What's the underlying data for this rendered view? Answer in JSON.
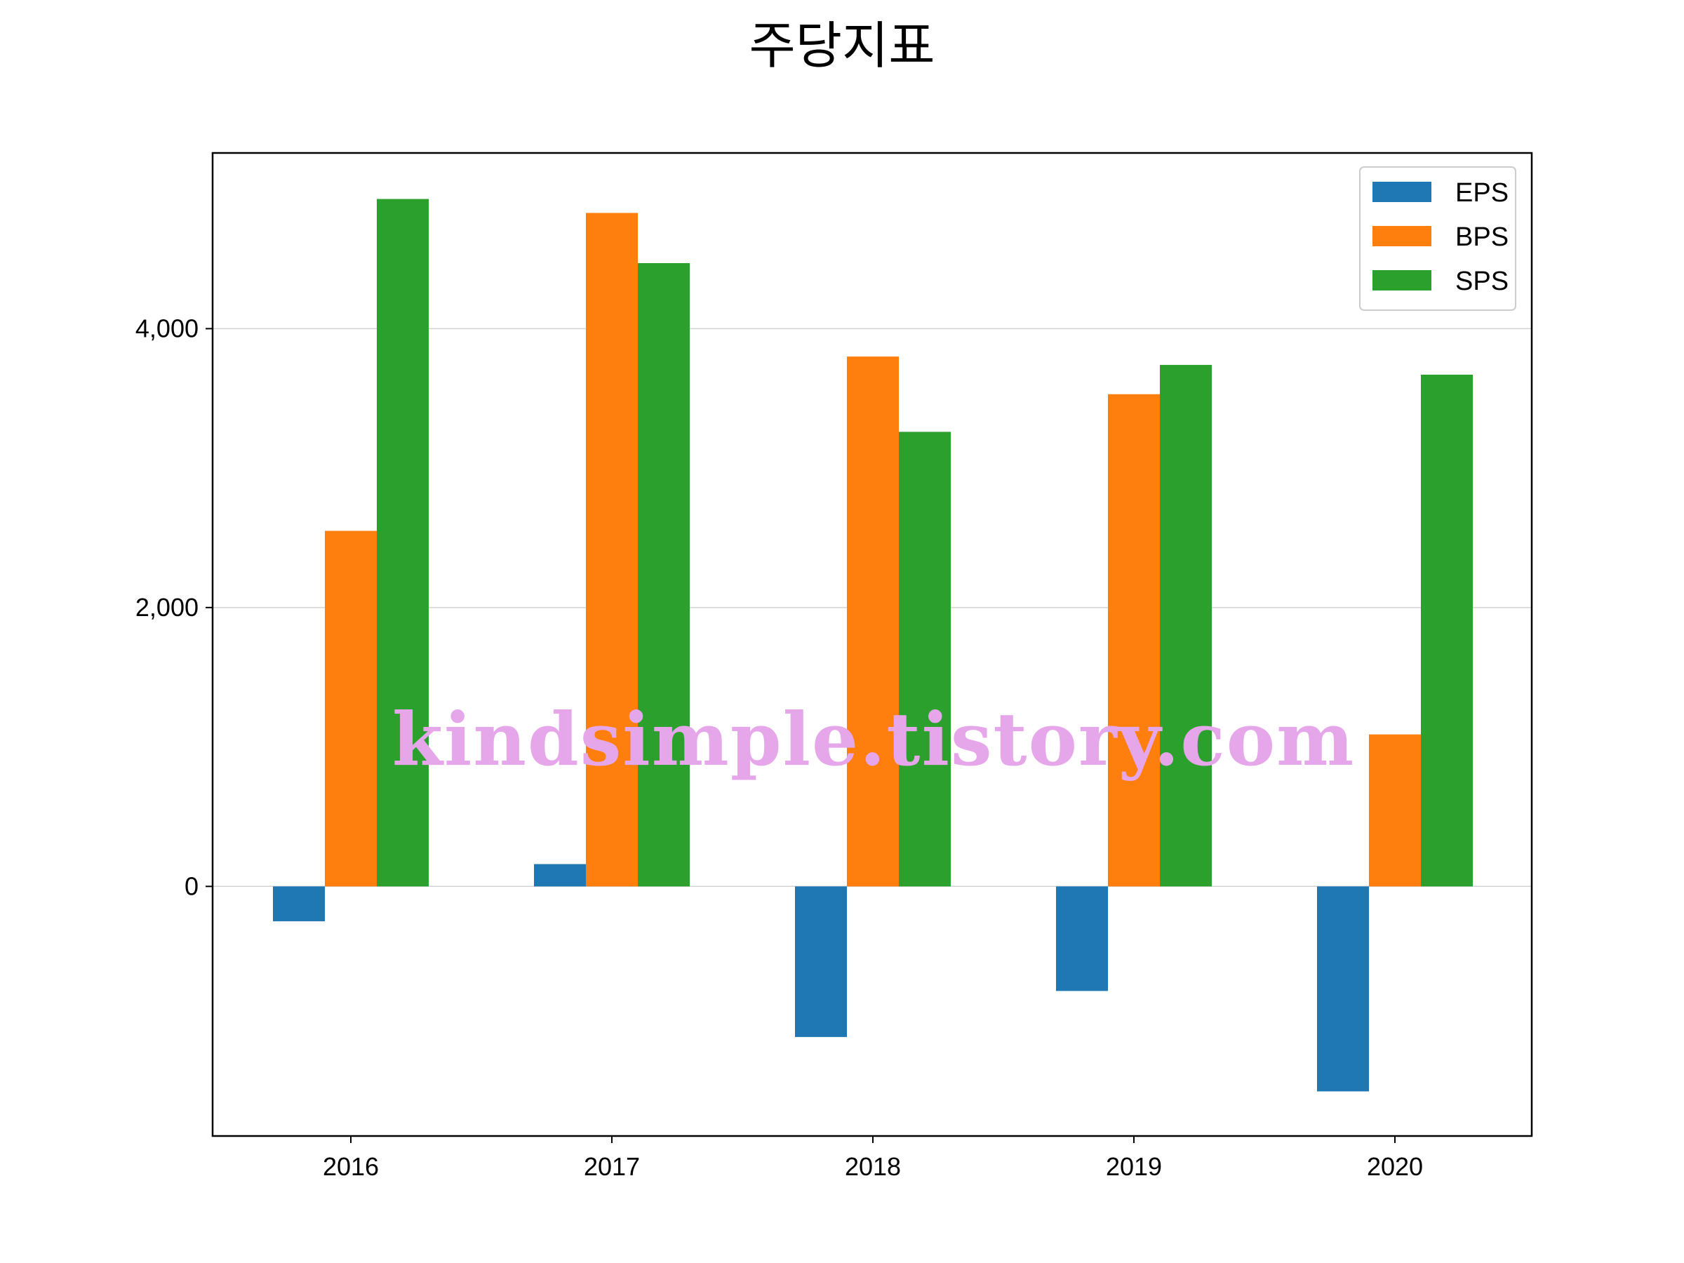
{
  "title": "주당지표",
  "watermark": "kindsimple.tistory.com",
  "colors": {
    "EPS": "#1f77b4",
    "BPS": "#ff7f0e",
    "SPS": "#2ca02c",
    "watermark": "#e6a6ea",
    "grid": "#d3d3d3",
    "axis": "#000000"
  },
  "chart_data": {
    "type": "bar",
    "title": "주당지표",
    "xlabel": "",
    "ylabel": "",
    "categories": [
      "2016",
      "2017",
      "2018",
      "2019",
      "2020"
    ],
    "series": [
      {
        "name": "EPS",
        "values": [
          -250,
          160,
          -1080,
          -750,
          -1470
        ]
      },
      {
        "name": "BPS",
        "values": [
          2550,
          4830,
          3800,
          3530,
          1090
        ]
      },
      {
        "name": "SPS",
        "values": [
          4930,
          4470,
          3260,
          3740,
          3670
        ]
      }
    ],
    "ylim": [
      -1790,
      5260
    ],
    "yticks": [
      0,
      2000,
      4000
    ],
    "ytick_labels": [
      "0",
      "2,000",
      "4,000"
    ],
    "grid": "y",
    "legend": "top-right"
  }
}
